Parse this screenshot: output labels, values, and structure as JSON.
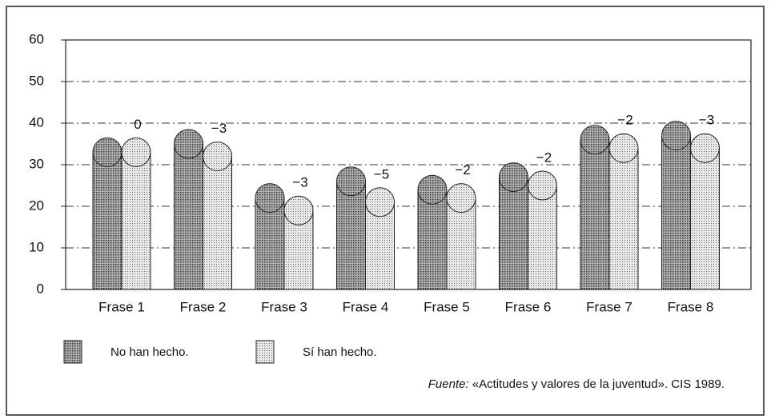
{
  "chart_data": {
    "type": "bar",
    "categories": [
      "Frase 1",
      "Frase 2",
      "Frase 3",
      "Frase 4",
      "Frase 5",
      "Frase 6",
      "Frase 7",
      "Frase 8"
    ],
    "series": [
      {
        "name": "No han hecho.",
        "color": "#8a8a8a",
        "values": [
          33,
          35,
          22,
          26,
          24,
          27,
          36,
          37
        ]
      },
      {
        "name": "Sí han hecho.",
        "color": "#cfcfcf",
        "values": [
          33,
          32,
          19,
          21,
          22,
          25,
          34,
          34
        ]
      }
    ],
    "annotations": [
      "0",
      "−3",
      "−3",
      "−5",
      "−2",
      "−2",
      "−2",
      "−3"
    ],
    "ylim": [
      0,
      60
    ],
    "yticks": [
      0,
      10,
      20,
      30,
      40,
      50,
      60
    ],
    "grid": true,
    "source_label": "Fuente:",
    "source": "«Actitudes y valores de la juventud». CIS 1989."
  }
}
